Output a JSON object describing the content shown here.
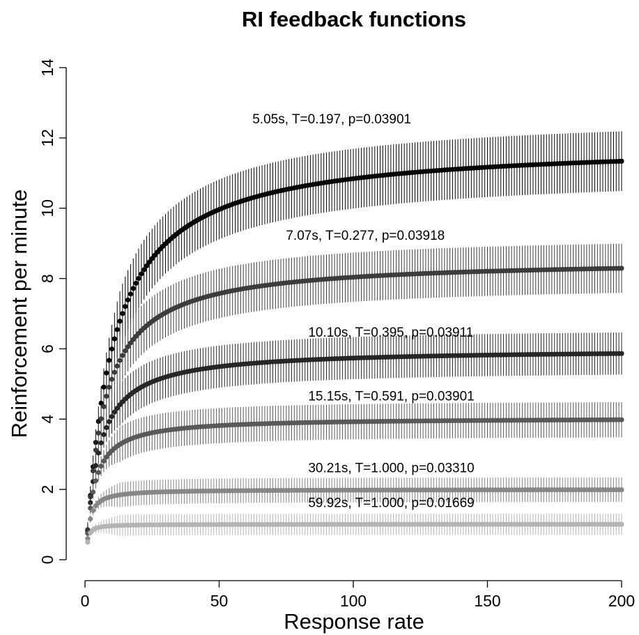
{
  "chart_data": {
    "type": "line",
    "title": "RI feedback functions",
    "xlabel": "Response rate",
    "ylabel": "Reinforcement per minute",
    "xlim": [
      0,
      200
    ],
    "ylim": [
      0,
      14
    ],
    "x_ticks": [
      0,
      50,
      100,
      150,
      200
    ],
    "y_ticks": [
      0,
      2,
      4,
      6,
      8,
      10,
      12,
      14
    ],
    "x_range": [
      1,
      200
    ],
    "grid": false,
    "legend": "none",
    "series": [
      {
        "label": "5.05s, T=0.197, p=0.03901",
        "color": "#000000",
        "asymptote": 11.88,
        "half_rate": 10.3,
        "start": 0.85,
        "error": 0.85,
        "values_at": {
          "x": [
            1,
            10,
            25,
            50,
            75,
            100,
            150,
            200
          ],
          "y": [
            0.85,
            5.8,
            8.3,
            9.9,
            10.6,
            10.95,
            11.35,
            11.5
          ]
        },
        "annotation_at": [
          6.24,
          12.41
        ]
      },
      {
        "label": "7.07s, T=0.277, p=0.03918",
        "color": "#3c3c3c",
        "asymptote": 8.56,
        "half_rate": 7.2,
        "start": 0.85,
        "error": 0.7,
        "values_at": {
          "x": [
            1,
            10,
            25,
            50,
            75,
            100,
            150,
            200
          ],
          "y": [
            0.85,
            4.9,
            6.6,
            7.5,
            7.85,
            8.0,
            8.15,
            8.3
          ]
        },
        "annotation_at": [
          7.49,
          9.1
        ]
      },
      {
        "label": "10.10s, T=0.395, p=0.03911",
        "color": "#262626",
        "asymptote": 6.0,
        "half_rate": 5.3,
        "start": 0.8,
        "error": 0.6,
        "values_at": {
          "x": [
            1,
            10,
            25,
            50,
            75,
            100,
            150,
            200
          ],
          "y": [
            0.8,
            3.8,
            5.0,
            5.5,
            5.65,
            5.72,
            5.8,
            5.85
          ]
        },
        "annotation_at": [
          8.32,
          6.35
        ]
      },
      {
        "label": "15.15s, T=0.591, p=0.03901",
        "color": "#595959",
        "asymptote": 4.04,
        "half_rate": 3.6,
        "start": 0.75,
        "error": 0.5,
        "values_at": {
          "x": [
            1,
            10,
            25,
            50,
            75,
            100,
            150,
            200
          ],
          "y": [
            0.75,
            2.7,
            3.5,
            3.75,
            3.85,
            3.9,
            3.93,
            3.95
          ]
        },
        "annotation_at": [
          8.32,
          4.53
        ]
      },
      {
        "label": "30.21s, T=1.000, p=0.03310",
        "color": "#878787",
        "asymptote": 2.0,
        "half_rate": 1.5,
        "start": 0.6,
        "error": 0.35,
        "values_at": {
          "x": [
            1,
            10,
            25,
            50,
            75,
            100,
            150,
            200
          ],
          "y": [
            0.6,
            1.75,
            1.9,
            1.95,
            1.97,
            1.98,
            1.98,
            1.98
          ]
        },
        "annotation_at": [
          8.32,
          2.49
        ]
      },
      {
        "label": "59.92s, T=1.000, p=0.01669",
        "color": "#b4b4b4",
        "asymptote": 1.01,
        "half_rate": 0.9,
        "start": 0.5,
        "error": 0.3,
        "values_at": {
          "x": [
            1,
            10,
            25,
            50,
            75,
            100,
            150,
            200
          ],
          "y": [
            0.5,
            0.92,
            0.97,
            0.99,
            1.0,
            1.0,
            1.0,
            1.0
          ]
        },
        "annotation_at": [
          8.32,
          1.5
        ]
      }
    ]
  }
}
